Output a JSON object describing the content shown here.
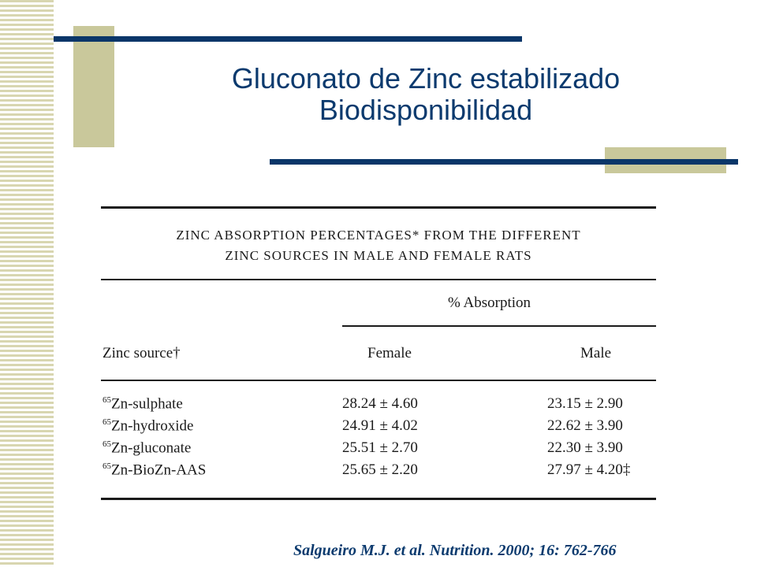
{
  "slide": {
    "title_line1": "Gluconato de Zinc estabilizado",
    "title_line2": "Biodisponibilidad",
    "citation": "Salgueiro M.J. et al. Nutrition. 2000; 16: 762-766"
  },
  "table": {
    "caption_line1": "ZINC ABSORPTION PERCENTAGES* FROM THE DIFFERENT",
    "caption_line2": "ZINC SOURCES IN MALE AND FEMALE RATS",
    "group_header": "% Absorption",
    "col_source": "Zinc source†",
    "col_female": "Female",
    "col_male": "Male",
    "rows": [
      {
        "sup": "65",
        "source": "Zn-sulphate",
        "female": "28.24 ± 4.60",
        "male": "23.15 ± 2.90"
      },
      {
        "sup": "65",
        "source": "Zn-hydroxide",
        "female": "24.91 ± 4.02",
        "male": "22.62 ± 3.90"
      },
      {
        "sup": "65",
        "source": "Zn-gluconate",
        "female": "25.51 ± 2.70",
        "male": "22.30 ± 3.90"
      },
      {
        "sup": "65",
        "source": "Zn-BioZn-AAS",
        "female": "25.65 ± 2.20",
        "male": "27.97 ± 4.20‡"
      }
    ]
  },
  "colors": {
    "title": "#0b3a6e",
    "accent_line": "#0a3669",
    "accent_block": "#c9c89b",
    "stripe": "#d8d6b0"
  }
}
